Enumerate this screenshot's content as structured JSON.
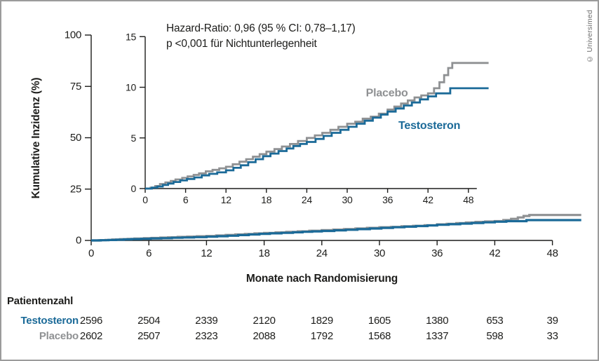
{
  "copyright": "© Universimed",
  "annotation": {
    "line1": "Hazard-Ratio: 0,96 (95 % CI: 0,78–1,17)",
    "line2": "p <0,001 für Nichtunterlegenheit"
  },
  "chart_data": {
    "type": "line",
    "subtype": "kaplan-meier-cumulative-incidence-steps",
    "title": "",
    "xlabel": "Monate nach Randomisierung",
    "ylabel": "Kumulative Inzidenz (%)",
    "main_axis": {
      "xlim": [
        0,
        51
      ],
      "ylim": [
        0,
        100
      ],
      "xticks": [
        0,
        6,
        12,
        18,
        24,
        30,
        36,
        42,
        48
      ],
      "yticks": [
        0,
        25,
        50,
        75,
        100
      ],
      "grid": false
    },
    "inset_axis": {
      "xlim": [
        0,
        51
      ],
      "ylim": [
        0,
        15
      ],
      "xticks": [
        0,
        6,
        12,
        18,
        24,
        30,
        36,
        42,
        48
      ],
      "yticks": [
        0,
        5,
        10,
        15
      ],
      "grid": false
    },
    "series": [
      {
        "name": "Placebo",
        "color": "#8f9193",
        "steps": [
          [
            0,
            0
          ],
          [
            0.8,
            0.1
          ],
          [
            1.5,
            0.25
          ],
          [
            2.2,
            0.45
          ],
          [
            3,
            0.6
          ],
          [
            3.8,
            0.75
          ],
          [
            4.5,
            0.9
          ],
          [
            5.5,
            1.05
          ],
          [
            6.3,
            1.2
          ],
          [
            7.2,
            1.35
          ],
          [
            8,
            1.5
          ],
          [
            9,
            1.7
          ],
          [
            10,
            1.85
          ],
          [
            11,
            2
          ],
          [
            12,
            2.15
          ],
          [
            13,
            2.4
          ],
          [
            14,
            2.65
          ],
          [
            15,
            2.9
          ],
          [
            16,
            3.15
          ],
          [
            17,
            3.4
          ],
          [
            18,
            3.65
          ],
          [
            19.2,
            3.9
          ],
          [
            20.3,
            4.15
          ],
          [
            21.5,
            4.4
          ],
          [
            22.7,
            4.7
          ],
          [
            24,
            5
          ],
          [
            25.2,
            5.25
          ],
          [
            26.3,
            5.5
          ],
          [
            27.5,
            5.8
          ],
          [
            28.7,
            6.1
          ],
          [
            30,
            6.4
          ],
          [
            31.2,
            6.6
          ],
          [
            32.3,
            6.9
          ],
          [
            33.5,
            7.1
          ],
          [
            34.7,
            7.4
          ],
          [
            36,
            7.8
          ],
          [
            37,
            8.1
          ],
          [
            38,
            8.4
          ],
          [
            39,
            8.7
          ],
          [
            40,
            9
          ],
          [
            41,
            9.2
          ],
          [
            42,
            9.4
          ],
          [
            42.9,
            9.9
          ],
          [
            43.7,
            10.5
          ],
          [
            44.4,
            11.2
          ],
          [
            45,
            11.9
          ],
          [
            45.6,
            12.4
          ],
          [
            51,
            12.4
          ]
        ]
      },
      {
        "name": "Testosteron",
        "color": "#1b6a98",
        "steps": [
          [
            0,
            0
          ],
          [
            1,
            0.1
          ],
          [
            1.8,
            0.2
          ],
          [
            2.6,
            0.35
          ],
          [
            3.4,
            0.5
          ],
          [
            4.2,
            0.65
          ],
          [
            5.2,
            0.8
          ],
          [
            6.2,
            0.95
          ],
          [
            7.3,
            1.1
          ],
          [
            8.4,
            1.3
          ],
          [
            9.5,
            1.45
          ],
          [
            10.7,
            1.6
          ],
          [
            12,
            1.8
          ],
          [
            13.1,
            2.05
          ],
          [
            14.2,
            2.3
          ],
          [
            15.3,
            2.6
          ],
          [
            16.4,
            2.9
          ],
          [
            17.5,
            3.2
          ],
          [
            18.6,
            3.45
          ],
          [
            19.8,
            3.7
          ],
          [
            21,
            3.95
          ],
          [
            22,
            4.2
          ],
          [
            23,
            4.4
          ],
          [
            24,
            4.6
          ],
          [
            25.3,
            4.9
          ],
          [
            26.5,
            5.2
          ],
          [
            27.7,
            5.5
          ],
          [
            29,
            5.8
          ],
          [
            30.2,
            6.1
          ],
          [
            31.4,
            6.4
          ],
          [
            32.6,
            6.7
          ],
          [
            33.8,
            7
          ],
          [
            35,
            7.3
          ],
          [
            36,
            7.6
          ],
          [
            37.2,
            7.9
          ],
          [
            38.4,
            8.2
          ],
          [
            39.6,
            8.5
          ],
          [
            40.8,
            8.8
          ],
          [
            42,
            9.1
          ],
          [
            43.2,
            9.4
          ],
          [
            45.3,
            9.9
          ],
          [
            51,
            9.9
          ]
        ]
      }
    ],
    "risk_table": {
      "title": "Patientenzahl",
      "months": [
        0,
        6,
        12,
        18,
        24,
        30,
        36,
        42,
        48
      ],
      "rows": [
        {
          "name": "Testosteron",
          "color": "#1b6a98",
          "values": [
            2596,
            2504,
            2339,
            2120,
            1829,
            1605,
            1380,
            653,
            39
          ]
        },
        {
          "name": "Placebo",
          "color": "#8f9193",
          "values": [
            2602,
            2507,
            2323,
            2088,
            1792,
            1568,
            1337,
            598,
            33
          ]
        }
      ]
    }
  }
}
